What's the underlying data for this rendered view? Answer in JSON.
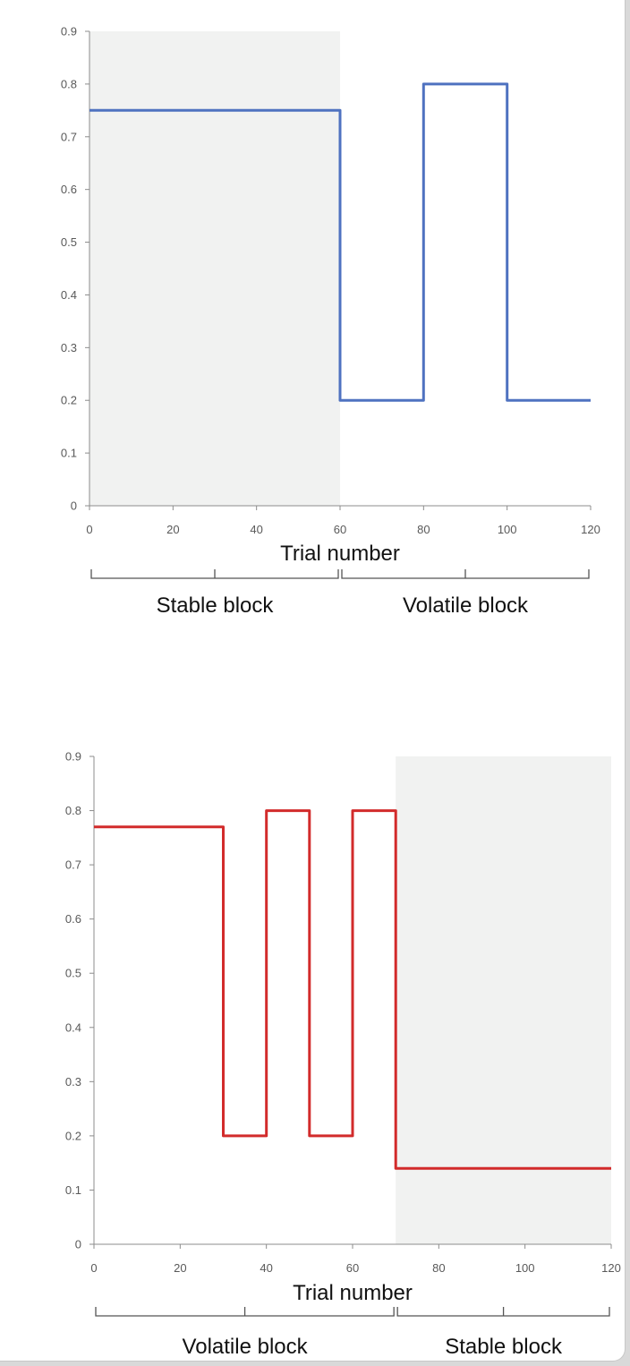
{
  "chart_data": [
    {
      "type": "line",
      "x": [
        0,
        60,
        60,
        80,
        80,
        100,
        100,
        120
      ],
      "series": [
        {
          "values": [
            0.75,
            0.75,
            0.2,
            0.2,
            0.8,
            0.8,
            0.2,
            0.2
          ]
        }
      ],
      "xlabel": "Trial number",
      "ylabel": "",
      "xlim": [
        0,
        120
      ],
      "ylim": [
        0,
        0.9
      ],
      "xticks": [
        "0",
        "20",
        "40",
        "60",
        "80",
        "100",
        "120"
      ],
      "yticks": [
        "0",
        "0.1",
        "0.2",
        "0.3",
        "0.4",
        "0.5",
        "0.6",
        "0.7",
        "0.8",
        "0.9"
      ],
      "shaded_region": [
        0,
        60
      ],
      "blocks": [
        {
          "label": "Stable block",
          "start": 0,
          "end": 60
        },
        {
          "label": "Volatile block",
          "start": 60,
          "end": 120
        }
      ],
      "line_color": "#4f72c0",
      "grid": false
    },
    {
      "type": "line",
      "x": [
        0,
        30,
        30,
        40,
        40,
        50,
        50,
        60,
        60,
        70,
        70,
        120
      ],
      "series": [
        {
          "values": [
            0.77,
            0.77,
            0.2,
            0.2,
            0.8,
            0.8,
            0.2,
            0.2,
            0.8,
            0.8,
            0.14,
            0.14
          ]
        }
      ],
      "xlabel": "Trial number",
      "ylabel": "",
      "xlim": [
        0,
        120
      ],
      "ylim": [
        0,
        0.9
      ],
      "xticks": [
        "0",
        "20",
        "40",
        "60",
        "80",
        "100",
        "120"
      ],
      "yticks": [
        "0",
        "0.1",
        "0.2",
        "0.3",
        "0.4",
        "0.5",
        "0.6",
        "0.7",
        "0.8",
        "0.9"
      ],
      "shaded_region": [
        70,
        120
      ],
      "blocks": [
        {
          "label": "Volatile block",
          "start": 0,
          "end": 70
        },
        {
          "label": "Stable block",
          "start": 70,
          "end": 120
        }
      ],
      "line_color": "#d22b2b",
      "grid": false
    }
  ]
}
